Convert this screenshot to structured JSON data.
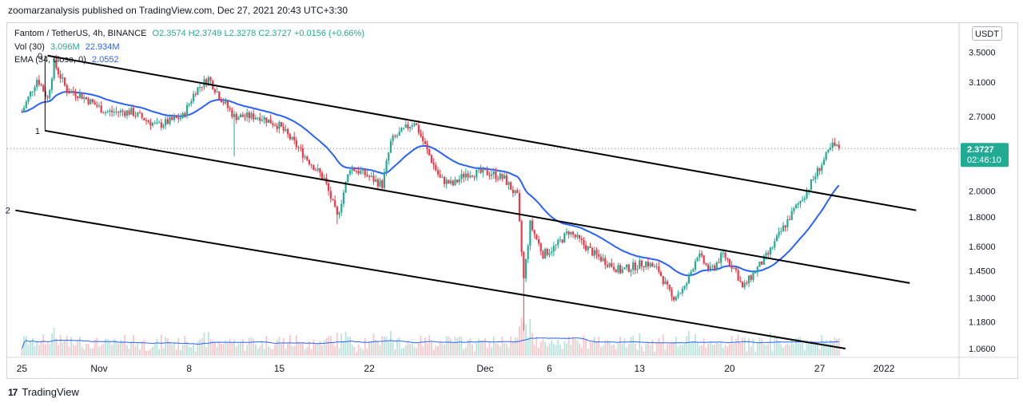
{
  "publisher_line": "zoomarzanalysis published on TradingView.com, Dec 27, 2021 20:43 UTC+3:30",
  "legend": {
    "symbol": "Fantom / TetherUS, 4h, BINANCE",
    "ohlc": "O2.3574  H2.3749  L2.3278  C2.3727  +0.0156 (+0.66%)",
    "vol_label": "Vol (30)",
    "vol_value": "3.096M",
    "vol_ma": "22.934M",
    "ema_label": "EMA (34, close, 0)",
    "ema_value": "2.0552"
  },
  "unit_button": "USDT",
  "price_label": {
    "value": "2.3727",
    "countdown": "02:46:10"
  },
  "footer": {
    "logo": "17",
    "brand": "TradingView"
  },
  "colors": {
    "up": "#22ab94",
    "down": "#f23645",
    "ema": "#2962ff",
    "channel": "#000000",
    "volume_up": "#b9e4dc",
    "volume_down": "#f7c7cb"
  },
  "chart_data": {
    "type": "candlestick",
    "title": "Fantom / TetherUS, 4h, BINANCE",
    "price_scale": "log",
    "y_ticks": [
      3.5,
      3.1,
      2.7,
      2.0,
      1.8,
      1.6,
      1.45,
      1.3,
      1.18,
      1.06
    ],
    "y_tick_labels": [
      "3.5000",
      "3.1000",
      "2.7000",
      "2.0000",
      "1.8000",
      "1.6000",
      "1.4500",
      "1.3000",
      "1.1800",
      "1.0600"
    ],
    "current_price_label": "2.3727",
    "x_tick_labels": [
      "25",
      "Nov",
      "8",
      "15",
      "22",
      "Dec",
      "6",
      "13",
      "20",
      "27",
      "2022"
    ],
    "x_tick_days": [
      -6,
      0,
      7,
      14,
      21,
      30,
      35,
      42,
      49,
      56,
      61
    ],
    "ema_34_last": 2.0552,
    "volume_ma_30_last": "22.934M",
    "price_path_knots": [
      [
        -6.0,
        2.75
      ],
      [
        -4.8,
        3.15
      ],
      [
        -4.0,
        2.9
      ],
      [
        -3.5,
        3.35
      ],
      [
        -2.5,
        3.0
      ],
      [
        -1.5,
        2.95
      ],
      [
        0.5,
        2.75
      ],
      [
        2.5,
        2.75
      ],
      [
        4.5,
        2.6
      ],
      [
        6.5,
        2.7
      ],
      [
        7.5,
        3.0
      ],
      [
        8.5,
        3.15
      ],
      [
        9.5,
        2.9
      ],
      [
        10.5,
        2.7
      ],
      [
        12.5,
        2.7
      ],
      [
        14.0,
        2.6
      ],
      [
        15.0,
        2.45
      ],
      [
        16.0,
        2.3
      ],
      [
        17.5,
        2.1
      ],
      [
        18.5,
        1.8
      ],
      [
        19.5,
        2.2
      ],
      [
        20.5,
        2.15
      ],
      [
        22.0,
        2.05
      ],
      [
        22.7,
        2.45
      ],
      [
        24.5,
        2.65
      ],
      [
        25.5,
        2.35
      ],
      [
        26.5,
        2.1
      ],
      [
        27.5,
        2.05
      ],
      [
        28.5,
        2.15
      ],
      [
        30.5,
        2.15
      ],
      [
        31.5,
        2.1
      ],
      [
        32.5,
        1.95
      ],
      [
        33.0,
        1.4
      ],
      [
        33.5,
        1.75
      ],
      [
        34.5,
        1.55
      ],
      [
        35.5,
        1.6
      ],
      [
        36.5,
        1.7
      ],
      [
        38.5,
        1.55
      ],
      [
        40.5,
        1.45
      ],
      [
        42.5,
        1.5
      ],
      [
        43.5,
        1.45
      ],
      [
        44.5,
        1.3
      ],
      [
        45.5,
        1.35
      ],
      [
        46.5,
        1.55
      ],
      [
        47.5,
        1.45
      ],
      [
        48.5,
        1.55
      ],
      [
        49.5,
        1.45
      ],
      [
        50.0,
        1.35
      ],
      [
        51.0,
        1.45
      ],
      [
        52.0,
        1.55
      ],
      [
        53.0,
        1.7
      ],
      [
        54.0,
        1.85
      ],
      [
        55.0,
        2.0
      ],
      [
        56.0,
        2.2
      ],
      [
        57.0,
        2.4
      ],
      [
        57.5,
        2.37
      ]
    ],
    "channel_lines": [
      {
        "name": "upper",
        "points": [
          [
            -4.0,
            3.45
          ],
          [
            63.5,
            1.85
          ]
        ]
      },
      {
        "name": "middle",
        "points": [
          [
            -4.2,
            2.55
          ],
          [
            63.0,
            1.38
          ]
        ]
      },
      {
        "name": "lower",
        "points": [
          [
            -6.5,
            1.85
          ],
          [
            58.0,
            1.06
          ]
        ]
      }
    ],
    "annotations": [
      {
        "text": "0",
        "day": -4.4,
        "price": 3.45
      },
      {
        "text": "1",
        "day": -4.6,
        "price": 2.55
      },
      {
        "text": "2",
        "day": -6.9,
        "price": 1.85
      }
    ]
  }
}
